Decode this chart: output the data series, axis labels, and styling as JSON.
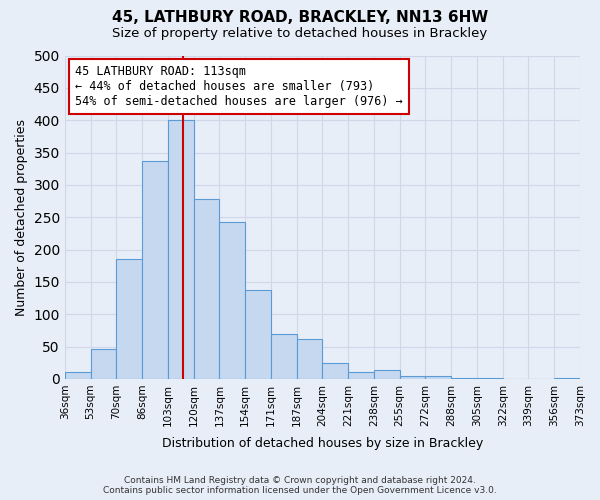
{
  "title": "45, LATHBURY ROAD, BRACKLEY, NN13 6HW",
  "subtitle": "Size of property relative to detached houses in Brackley",
  "xlabel": "Distribution of detached houses by size in Brackley",
  "ylabel": "Number of detached properties",
  "bin_labels": [
    "36sqm",
    "53sqm",
    "70sqm",
    "86sqm",
    "103sqm",
    "120sqm",
    "137sqm",
    "154sqm",
    "171sqm",
    "187sqm",
    "204sqm",
    "221sqm",
    "238sqm",
    "255sqm",
    "272sqm",
    "288sqm",
    "305sqm",
    "322sqm",
    "339sqm",
    "356sqm",
    "373sqm"
  ],
  "bar_heights": [
    10,
    47,
    185,
    337,
    400,
    278,
    242,
    137,
    70,
    62,
    25,
    10,
    13,
    5,
    5,
    2,
    2,
    0,
    0,
    2
  ],
  "bar_color": "#c5d8f0",
  "bar_edge_color": "#5b9bd5",
  "property_value": 113,
  "property_line_bin": 4.94,
  "annotation_title": "45 LATHBURY ROAD: 113sqm",
  "annotation_line1": "← 44% of detached houses are smaller (793)",
  "annotation_line2": "54% of semi-detached houses are larger (976) →",
  "annotation_box_color": "#ffffff",
  "annotation_box_edge": "#cc0000",
  "vline_color": "#cc0000",
  "ylim": [
    0,
    500
  ],
  "yticks": [
    0,
    50,
    100,
    150,
    200,
    250,
    300,
    350,
    400,
    450,
    500
  ],
  "grid_color": "#d0d8e8",
  "bg_color": "#e8eef8",
  "footer_line1": "Contains HM Land Registry data © Crown copyright and database right 2024.",
  "footer_line2": "Contains public sector information licensed under the Open Government Licence v3.0."
}
